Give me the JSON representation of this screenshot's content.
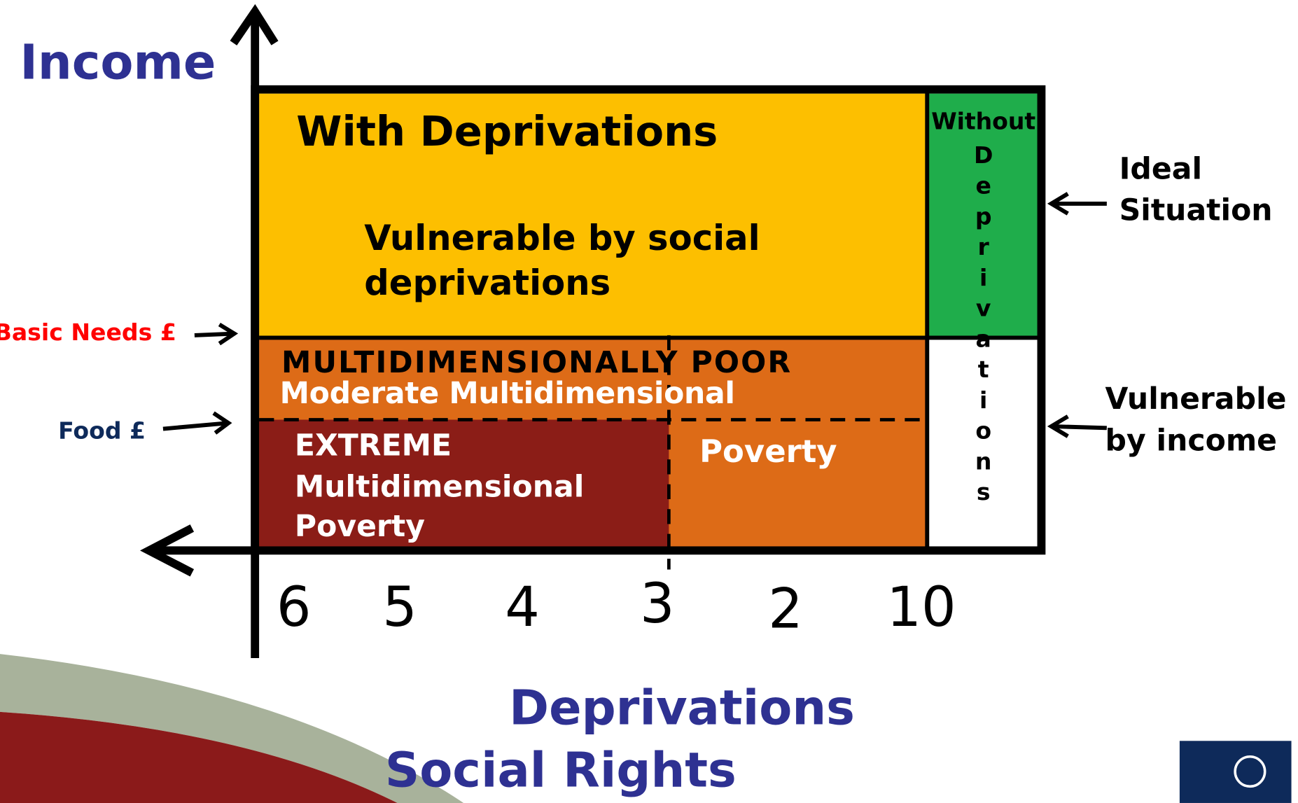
{
  "axis": {
    "y_label": "Income",
    "x_label": "Deprivations",
    "x_sublabel": "Social Rights",
    "x_ticks": [
      "6",
      "5",
      "4",
      "3",
      "2",
      "10"
    ]
  },
  "regions": {
    "with": "With Deprivations",
    "vulnerable_social": [
      "Vulnerable by social",
      "deprivations"
    ],
    "multi_poor": "MULTIDIMENSIONALLY POOR",
    "moderate": "Moderate Multidimensional",
    "poverty": "Poverty",
    "extreme": [
      "EXTREME",
      "Multidimensional",
      "Poverty"
    ],
    "without": "Without",
    "without_letters": "Deprivations"
  },
  "lines": {
    "basic_needs": "Basic Needs £",
    "food": "Food £"
  },
  "annotations": {
    "ideal": [
      "Ideal",
      "Situation"
    ],
    "vulnerable_income": [
      "Vulnerable",
      "by income"
    ]
  }
}
